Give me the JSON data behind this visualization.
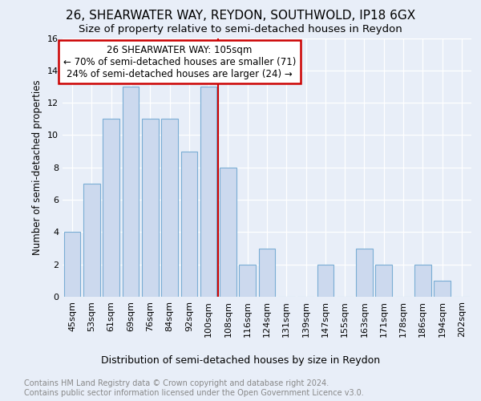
{
  "title1": "26, SHEARWATER WAY, REYDON, SOUTHWOLD, IP18 6GX",
  "title2": "Size of property relative to semi-detached houses in Reydon",
  "xlabel": "Distribution of semi-detached houses by size in Reydon",
  "ylabel": "Number of semi-detached properties",
  "categories": [
    "45sqm",
    "53sqm",
    "61sqm",
    "69sqm",
    "76sqm",
    "84sqm",
    "92sqm",
    "100sqm",
    "108sqm",
    "116sqm",
    "124sqm",
    "131sqm",
    "139sqm",
    "147sqm",
    "155sqm",
    "163sqm",
    "171sqm",
    "178sqm",
    "186sqm",
    "194sqm",
    "202sqm"
  ],
  "values": [
    4,
    7,
    11,
    13,
    11,
    11,
    9,
    13,
    8,
    2,
    3,
    0,
    0,
    2,
    0,
    3,
    2,
    0,
    2,
    1,
    0
  ],
  "bar_color": "#ccd9ee",
  "bar_edge_color": "#7aadd4",
  "vline_index": 8,
  "annotation_title": "26 SHEARWATER WAY: 105sqm",
  "annotation_line1": "← 70% of semi-detached houses are smaller (71)",
  "annotation_line2": "24% of semi-detached houses are larger (24) →",
  "annotation_box_color": "#ffffff",
  "annotation_box_edge_color": "#cc0000",
  "vline_color": "#cc0000",
  "ylim": [
    0,
    16
  ],
  "yticks": [
    0,
    2,
    4,
    6,
    8,
    10,
    12,
    14,
    16
  ],
  "background_color": "#e8eef8",
  "footer_line1": "Contains HM Land Registry data © Crown copyright and database right 2024.",
  "footer_line2": "Contains public sector information licensed under the Open Government Licence v3.0.",
  "title1_fontsize": 11,
  "title2_fontsize": 9.5,
  "xlabel_fontsize": 9,
  "ylabel_fontsize": 8.5,
  "tick_fontsize": 8,
  "footer_fontsize": 7,
  "ann_fontsize": 8.5
}
